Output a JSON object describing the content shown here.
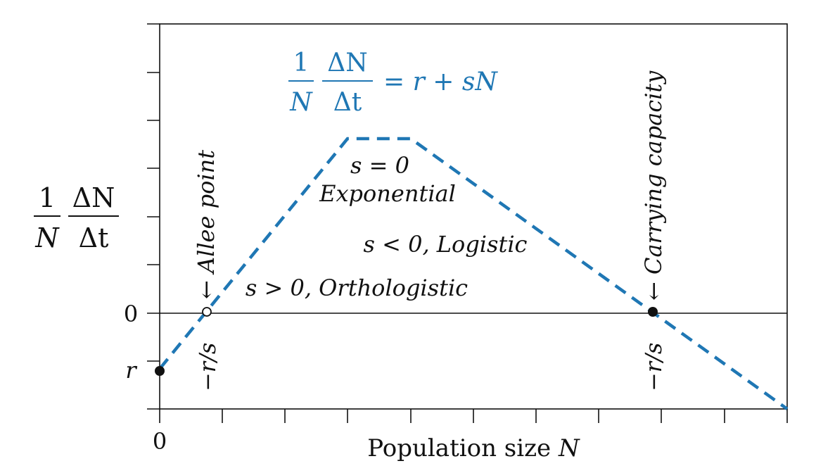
{
  "accent_color": "#1f77b4",
  "x_axis": {
    "label": "Population size",
    "label_var": "N",
    "origin_label": "0"
  },
  "y_axis": {
    "frac_num": "1",
    "frac_den": "N",
    "dfrac_num": "ΔN",
    "dfrac_den": "Δt",
    "zero_label": "0",
    "r_label": "r"
  },
  "equation": {
    "frac_num": "1",
    "frac_den": "N",
    "dfrac_num": "ΔN",
    "dfrac_den": "Δt",
    "rhs": "= r + sN"
  },
  "annotations": {
    "s_zero": "s = 0",
    "exponential": "Exponential",
    "logistic": "s < 0, Logistic",
    "orthologistic": "s > 0, Orthologistic",
    "allee": "← Allee point",
    "allee_value": "−r/s",
    "carrying": "← Carrying capacity",
    "carrying_value": "−r/s"
  }
}
